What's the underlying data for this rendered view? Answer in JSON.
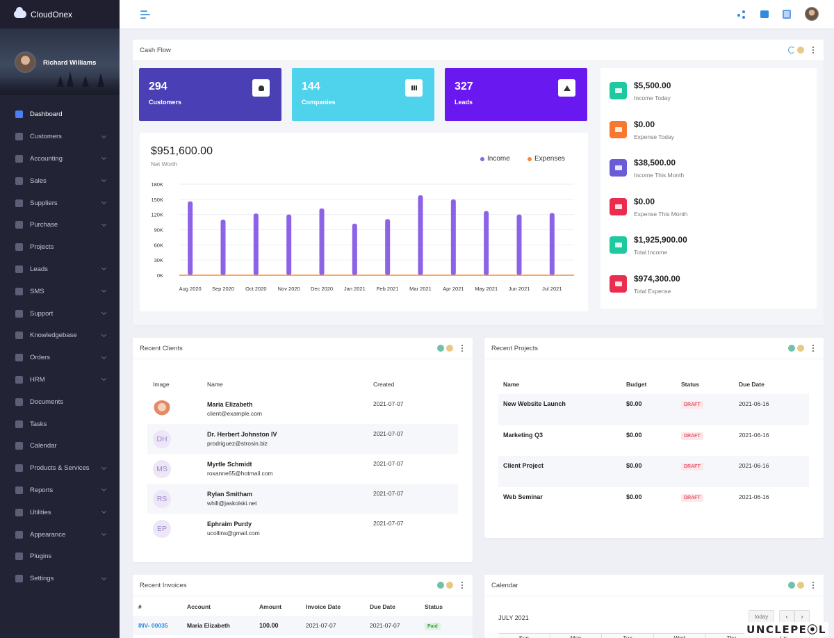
{
  "brand": {
    "name": "CloudOnex"
  },
  "user": {
    "name": "Richard Williams"
  },
  "sidebar": {
    "items": [
      {
        "label": "Dashboard",
        "icon": "bar-chart-icon",
        "active": true,
        "has_children": false
      },
      {
        "label": "Customers",
        "icon": "users-icon",
        "has_children": true
      },
      {
        "label": "Accounting",
        "icon": "calculator-icon",
        "has_children": true
      },
      {
        "label": "Sales",
        "icon": "sales-icon",
        "has_children": true
      },
      {
        "label": "Suppliers",
        "icon": "suppliers-icon",
        "has_children": true
      },
      {
        "label": "Purchase",
        "icon": "purchase-icon",
        "has_children": true
      },
      {
        "label": "Projects",
        "icon": "box-icon",
        "has_children": false
      },
      {
        "label": "Leads",
        "icon": "leads-icon",
        "has_children": true
      },
      {
        "label": "SMS",
        "icon": "sms-icon",
        "has_children": true
      },
      {
        "label": "Support",
        "icon": "support-icon",
        "has_children": true
      },
      {
        "label": "Knowledgebase",
        "icon": "book-icon",
        "has_children": true
      },
      {
        "label": "Orders",
        "icon": "orders-icon",
        "has_children": true
      },
      {
        "label": "HRM",
        "icon": "hrm-icon",
        "has_children": true
      },
      {
        "label": "Documents",
        "icon": "folder-icon",
        "has_children": false
      },
      {
        "label": "Tasks",
        "icon": "tasks-icon",
        "has_children": false
      },
      {
        "label": "Calendar",
        "icon": "calendar-icon",
        "has_children": false
      },
      {
        "label": "Products & Services",
        "icon": "products-icon",
        "has_children": true
      },
      {
        "label": "Reports",
        "icon": "reports-icon",
        "has_children": true
      },
      {
        "label": "Utilities",
        "icon": "command-icon",
        "has_children": true
      },
      {
        "label": "Appearance",
        "icon": "appearance-icon",
        "has_children": true
      },
      {
        "label": "Plugins",
        "icon": "plugins-icon",
        "has_children": false
      },
      {
        "label": "Settings",
        "icon": "gear-icon",
        "has_children": true
      }
    ]
  },
  "cashflow": {
    "title": "Cash Flow",
    "stats": [
      {
        "value": "294",
        "label": "Customers",
        "color": "#4a3fb5",
        "icon": "user-icon"
      },
      {
        "value": "144",
        "label": "Companies",
        "color": "#4fd3ec",
        "icon": "bar-chart-icon"
      },
      {
        "value": "327",
        "label": "Leads",
        "color": "#6a18f0",
        "icon": "arrow-up-icon"
      }
    ],
    "net_worth": {
      "value": "$951,600.00",
      "label": "Net Worth"
    },
    "summary": [
      {
        "value": "$5,500.00",
        "label": "Income Today",
        "color": "#1fc9a0",
        "icon": "card-icon"
      },
      {
        "value": "$0.00",
        "label": "Expense Today",
        "color": "#f7782e",
        "icon": "card-icon"
      },
      {
        "value": "$38,500.00",
        "label": "Income This Month",
        "color": "#6a5bd6",
        "icon": "gift-icon"
      },
      {
        "value": "$0.00",
        "label": "Expense This Month",
        "color": "#ea2d4f",
        "icon": "card-icon"
      },
      {
        "value": "$1,925,900.00",
        "label": "Total Income",
        "color": "#1fc9a0",
        "icon": "bar-chart-icon"
      },
      {
        "value": "$974,300.00",
        "label": "Total Expense",
        "color": "#ea2d4f",
        "icon": "bar-chart-icon"
      }
    ]
  },
  "chart_data": {
    "type": "bar",
    "categories": [
      "Aug 2020",
      "Sep 2020",
      "Oct 2020",
      "Nov 2020",
      "Dec 2020",
      "Jan 2021",
      "Feb 2021",
      "Mar 2021",
      "Apr 2021",
      "May 2021",
      "Jun 2021",
      "Jul 2021"
    ],
    "series": [
      {
        "name": "Income",
        "color": "#8c62e6",
        "values": [
          146000,
          110000,
          122000,
          120000,
          132000,
          102000,
          111000,
          158000,
          150000,
          127000,
          120000,
          123000
        ]
      },
      {
        "name": "Expenses",
        "color": "#f08a3c",
        "values": [
          0,
          0,
          0,
          0,
          0,
          0,
          0,
          0,
          0,
          0,
          0,
          0
        ]
      }
    ],
    "yticks": [
      "180K",
      "150K",
      "120K",
      "90K",
      "60K",
      "30K",
      "0K"
    ],
    "ylim": [
      0,
      180000
    ],
    "legend_position": "top-right",
    "grid": true
  },
  "recent_clients": {
    "title": "Recent Clients",
    "headers": {
      "image": "Image",
      "name": "Name",
      "created": "Created"
    },
    "rows": [
      {
        "initials": "",
        "photo": true,
        "name": "Maria Elizabeth",
        "email": "client@example.com",
        "created": "2021-07-07"
      },
      {
        "initials": "DH",
        "name": "Dr. Herbert Johnston IV",
        "email": "prodriguez@strosin.biz",
        "created": "2021-07-07"
      },
      {
        "initials": "MS",
        "name": "Myrtle Schmidt",
        "email": "roxanne65@hotmail.com",
        "created": "2021-07-07"
      },
      {
        "initials": "RS",
        "name": "Rylan Smitham",
        "email": "whill@jaskolski.net",
        "created": "2021-07-07"
      },
      {
        "initials": "EP",
        "name": "Ephraim Purdy",
        "email": "ucollins@gmail.com",
        "created": "2021-07-07"
      }
    ]
  },
  "recent_projects": {
    "title": "Recent Projects",
    "headers": {
      "name": "Name",
      "budget": "Budget",
      "status": "Status",
      "due": "Due Date"
    },
    "rows": [
      {
        "name": "New Website Launch",
        "budget": "$0.00",
        "status": "DRAFT",
        "due": "2021-06-16"
      },
      {
        "name": "Marketing Q3",
        "budget": "$0.00",
        "status": "DRAFT",
        "due": "2021-06-16"
      },
      {
        "name": "Client Project",
        "budget": "$0.00",
        "status": "DRAFT",
        "due": "2021-06-16"
      },
      {
        "name": "Web Seminar",
        "budget": "$0.00",
        "status": "DRAFT",
        "due": "2021-06-16"
      }
    ]
  },
  "recent_invoices": {
    "title": "Recent Invoices",
    "headers": {
      "num": "#",
      "account": "Account",
      "amount": "Amount",
      "date": "Invoice Date",
      "due": "Due Date",
      "status": "Status"
    },
    "rows": [
      {
        "num": "INV- 00035",
        "account": "Maria Elizabeth",
        "amount": "100.00",
        "date": "2021-07-07",
        "due": "2021-07-07",
        "status": "Paid"
      }
    ]
  },
  "calendar": {
    "title": "Calendar",
    "month": "JULY 2021",
    "today_label": "today",
    "weekdays": [
      "Sun",
      "Mon",
      "Tue",
      "Wed",
      "Thu",
      "Fri"
    ]
  },
  "watermark": "UNCLEPE⦿L"
}
